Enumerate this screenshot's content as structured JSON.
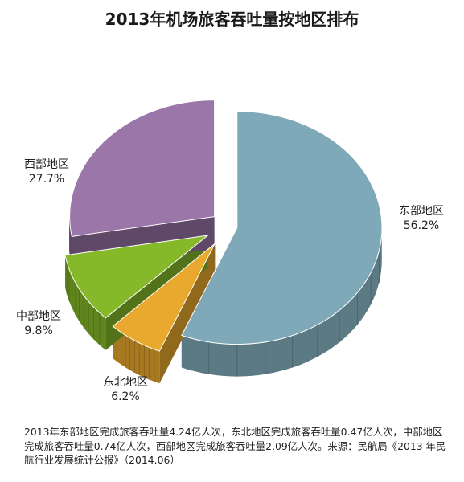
{
  "chart_data": {
    "type": "pie",
    "title": "2013年机场旅客吞吐量按地区排布",
    "slices": [
      {
        "name": "东部地区",
        "value": 56.2,
        "label": "56.2%",
        "color": "#7fa9b8"
      },
      {
        "name": "东北地区",
        "value": 6.2,
        "label": "6.2%",
        "color": "#e8a92e"
      },
      {
        "name": "中部地区",
        "value": 9.8,
        "label": "9.8%",
        "color": "#86b92a"
      },
      {
        "name": "西部地区",
        "value": 27.7,
        "label": "27.7%",
        "color": "#9b76a8"
      }
    ],
    "exploded": true,
    "style": "3d"
  },
  "footnote": "2013年东部地区完成旅客吞吐量4.24亿人次，东北地区完成旅客吞吐量0.47亿人次，中部地区完成旅客吞吐量0.74亿人次，西部地区完成旅客吞吐量2.09亿人次。来源：民航局《2013 年民航行业发展统计公报》（2014.06）"
}
